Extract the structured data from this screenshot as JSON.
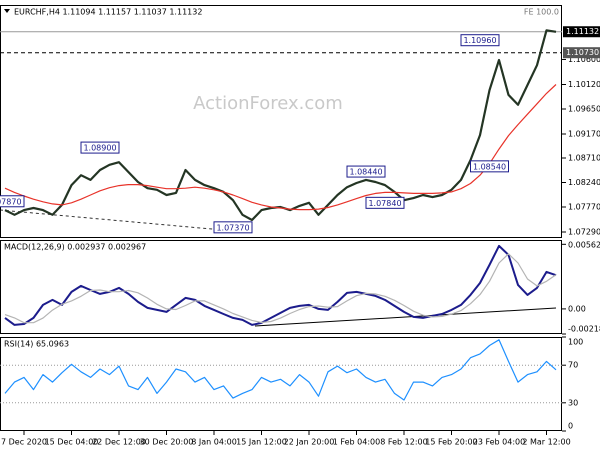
{
  "chart_data": [
    {
      "type": "line",
      "title": "EURCHF,H4 1.11094 1.11157 1.11037 1.11132",
      "note": "FE 100.0",
      "watermark": "ActionForex.com",
      "categories": [
        null,
        null,
        "7 Dec 2020",
        null,
        null,
        null,
        null,
        "15 Dec 04:00",
        null,
        null,
        null,
        null,
        "22 Dec 12:00",
        null,
        null,
        null,
        null,
        "30 Dec 20:00",
        null,
        null,
        null,
        null,
        "8 Jan 04:00",
        null,
        null,
        null,
        null,
        "15 Jan 12:00",
        null,
        null,
        null,
        null,
        "22 Jan 20:00",
        null,
        null,
        null,
        null,
        "1 Feb 04:00",
        null,
        null,
        null,
        null,
        "8 Feb 12:00",
        null,
        null,
        null,
        null,
        "15 Feb 20:00",
        null,
        null,
        null,
        null,
        "23 Feb 04:00",
        null,
        null,
        null,
        null,
        "2 Mar 12:00",
        null
      ],
      "series": [
        {
          "color": "#243524",
          "values": [
            1.0771,
            1.0762,
            1.0771,
            1.0775,
            1.0771,
            1.0762,
            1.0781,
            1.0819,
            1.0838,
            1.0829,
            1.0848,
            1.0858,
            1.0863,
            1.0844,
            1.0825,
            1.0813,
            1.081,
            1.08,
            1.0804,
            1.0848,
            1.0829,
            1.0819,
            1.0813,
            1.0806,
            1.079,
            1.0762,
            1.0752,
            1.0771,
            1.0775,
            1.0777,
            1.0771,
            1.0779,
            1.0785,
            1.0762,
            1.0781,
            1.08,
            1.0815,
            1.0823,
            1.0829,
            1.0825,
            1.0819,
            1.0806,
            1.079,
            1.0794,
            1.08,
            1.0796,
            1.08,
            1.081,
            1.0829,
            1.0867,
            1.0915,
            1.1001,
            1.1059,
            1.0992,
            1.0973,
            1.1011,
            1.1049,
            1.1116,
            1.1113
          ]
        },
        {
          "color": "#e8332a",
          "values": [
            1.0813,
            1.0805,
            1.0798,
            1.0792,
            1.0787,
            1.0783,
            1.0781,
            1.0785,
            1.0792,
            1.08,
            1.0808,
            1.0814,
            1.0818,
            1.082,
            1.082,
            1.0818,
            1.0815,
            1.0812,
            1.0812,
            1.0813,
            1.0815,
            1.0813,
            1.081,
            1.0806,
            1.08,
            1.0793,
            1.0786,
            1.0781,
            1.0777,
            1.0775,
            1.0773,
            1.0772,
            1.0772,
            1.0773,
            1.0776,
            1.0781,
            1.0787,
            1.0793,
            1.0799,
            1.0803,
            1.0805,
            1.0805,
            1.0804,
            1.0803,
            1.0803,
            1.0803,
            1.0804,
            1.0806,
            1.0812,
            1.0822,
            1.0838,
            1.086,
            1.0888,
            1.0914,
            1.0935,
            1.0955,
            1.0975,
            1.0995,
            1.1012
          ]
        }
      ],
      "ylim": [
        1.07175,
        1.11645
      ],
      "yticks": [
        {
          "value": 1.106,
          "label": "1.10600"
        },
        {
          "value": 1.1012,
          "label": "1.10120"
        },
        {
          "value": 1.0965,
          "label": "1.09650"
        },
        {
          "value": 1.0917,
          "label": "1.09170"
        },
        {
          "value": 1.0871,
          "label": "1.08710"
        },
        {
          "value": 1.0824,
          "label": "1.08240"
        },
        {
          "value": 1.0777,
          "label": "1.07770"
        },
        {
          "value": 1.0729,
          "label": "1.07290"
        }
      ],
      "levels": [
        {
          "value": 1.11132,
          "label": "1.11132",
          "color": "#000000",
          "dashed": false
        },
        {
          "value": 1.1073,
          "label": "1.10730",
          "color": "#555555",
          "dashed": true
        }
      ],
      "annotations": [
        {
          "index": 0,
          "value": 1.0787,
          "label": "1.07870"
        },
        {
          "index": 10,
          "value": 1.089,
          "label": "1.08900"
        },
        {
          "index": 24,
          "value": 1.0737,
          "label": "1.07370"
        },
        {
          "index": 38,
          "value": 1.0844,
          "label": "1.08440"
        },
        {
          "index": 40,
          "value": 1.0784,
          "label": "1.07840"
        },
        {
          "index": 50,
          "value": 1.1096,
          "label": "1.10960"
        },
        {
          "index": 51,
          "value": 1.0854,
          "label": "1.08540"
        }
      ]
    },
    {
      "type": "line",
      "title": "MACD(12,26,9) 0.002937 0.002967",
      "series": [
        {
          "color": "#1c1c8c",
          "values": [
            -0.00078,
            -0.00139,
            -0.00131,
            -0.00078,
            0.00035,
            0.00078,
            0.00035,
            0.00148,
            0.002,
            0.00165,
            0.00131,
            0.00148,
            0.00183,
            0.00131,
            0.00061,
            9e-05,
            -9e-05,
            -0.00026,
            0.00035,
            0.00096,
            0.00078,
            0.00026,
            -9e-05,
            -0.00044,
            -0.00078,
            -0.00096,
            -0.00139,
            -0.00122,
            -0.00078,
            -0.00035,
            9e-05,
            0.00026,
            0.00035,
            0,
            -9e-05,
            0.00061,
            0.00139,
            0.00148,
            0.00131,
            0.00113,
            0.00078,
            0.00026,
            -0.00026,
            -0.0007,
            -0.00078,
            -0.00061,
            -0.00044,
            -9e-05,
            0.00035,
            0.00122,
            0.00226,
            0.00383,
            0.00549,
            0.0047,
            0.00209,
            0.00122,
            0.00183,
            0.00322,
            0.002937
          ]
        },
        {
          "color": "#b4b4b4",
          "values": [
            -0.0005,
            -0.00078,
            -0.0012,
            -0.0012,
            -0.0008,
            -0.0001,
            0.0004,
            0.0007,
            0.0011,
            0.0016,
            0.00165,
            0.0015,
            0.0015,
            0.0016,
            0.0014,
            0.00095,
            0.0004,
            0,
            -5e-05,
            0.0003,
            0.0007,
            0.0007,
            0.00035,
            0,
            -0.0004,
            -0.0007,
            -0.001,
            -0.00118,
            -0.0011,
            -0.0008,
            -0.0004,
            -5e-05,
            0.0002,
            0.00025,
            0.00015,
            0.0002,
            0.0007,
            0.00115,
            0.00135,
            0.0013,
            0.0011,
            0.00075,
            0.0003,
            -0.0002,
            -0.00055,
            -0.0007,
            -0.00065,
            -0.00045,
            -0.00015,
            0.00045,
            0.00125,
            0.0024,
            0.004,
            0.0048,
            0.004,
            0.0026,
            0.002,
            0.0024,
            0.002967
          ]
        }
      ],
      "ylim": [
        -0.002185,
        0.006
      ],
      "yticks": [
        0.005625,
        {
          "value": 0,
          "label": "0.00"
        },
        -0.002185
      ]
    },
    {
      "type": "line",
      "title": "RSI(14) 65.0963",
      "series": [
        {
          "color": "#1e90ff",
          "values": [
            40,
            52,
            57,
            44,
            60,
            52,
            62,
            71,
            63,
            57,
            66,
            60,
            69,
            48,
            44,
            57,
            40,
            52,
            66,
            63,
            52,
            57,
            44,
            48,
            35,
            40,
            44,
            57,
            52,
            55,
            48,
            60,
            52,
            37,
            63,
            69,
            62,
            66,
            57,
            52,
            55,
            40,
            33,
            52,
            52,
            48,
            57,
            60,
            66,
            78,
            82,
            91,
            97,
            74,
            52,
            60,
            63,
            74,
            65.1
          ]
        }
      ],
      "ylim": [
        0,
        100
      ],
      "yticks": [
        100,
        70,
        30,
        0
      ],
      "grid": true
    }
  ]
}
